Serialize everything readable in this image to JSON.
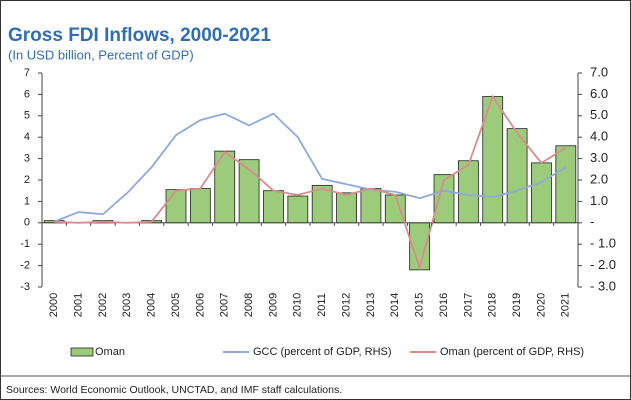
{
  "chart_data": {
    "type": "combo",
    "title": "Gross FDI Inflows, 2000-2021",
    "subtitle": "(In USD billion, Percent of GDP)",
    "source": "Sources: World Economic Outlook, UNCTAD, and IMF staff calculations.",
    "categories": [
      "2000",
      "2001",
      "2002",
      "2003",
      "2004",
      "2005",
      "2006",
      "2007",
      "2008",
      "2009",
      "2010",
      "2011",
      "2012",
      "2013",
      "2014",
      "2015",
      "2016",
      "2017",
      "2018",
      "2019",
      "2020",
      "2021"
    ],
    "series": [
      {
        "name": "Oman",
        "type": "bar",
        "color": "#9ccb7c",
        "values": [
          0.1,
          0.0,
          0.1,
          0.0,
          0.1,
          1.55,
          1.6,
          3.35,
          2.95,
          1.5,
          1.25,
          1.75,
          1.4,
          1.6,
          1.3,
          -2.2,
          2.25,
          2.9,
          5.9,
          4.4,
          2.8,
          3.6
        ]
      },
      {
        "name": "GCC (percent of GDP, RHS)",
        "type": "line",
        "axis": "y2",
        "color": "#8eaadb",
        "values": [
          0.05,
          0.5,
          0.4,
          1.4,
          2.6,
          4.1,
          4.8,
          5.1,
          4.55,
          5.1,
          4.0,
          2.05,
          1.8,
          1.55,
          1.45,
          1.15,
          1.5,
          1.3,
          1.2,
          1.5,
          1.9,
          2.6
        ]
      },
      {
        "name": "Oman (percent of GDP, RHS)",
        "type": "line",
        "axis": "y2",
        "color": "#d98c8c",
        "values": [
          0.05,
          0.0,
          0.05,
          0.0,
          0.05,
          1.5,
          1.6,
          3.3,
          2.5,
          1.5,
          1.3,
          1.6,
          1.3,
          1.6,
          1.3,
          -2.1,
          2.0,
          2.7,
          5.9,
          4.2,
          2.8,
          3.5
        ]
      }
    ],
    "ylim": [
      -3,
      7
    ],
    "yticks": [
      -3,
      -2,
      -1,
      0,
      1,
      2,
      3,
      4,
      5,
      6,
      7
    ],
    "y2lim": [
      -3,
      7
    ],
    "y2ticks": [
      {
        "value": 7,
        "label": "7.0"
      },
      {
        "value": 6,
        "label": "6.0"
      },
      {
        "value": 5,
        "label": "5.0"
      },
      {
        "value": 4,
        "label": "4.0"
      },
      {
        "value": 3,
        "label": "3.0"
      },
      {
        "value": 2,
        "label": "2.0"
      },
      {
        "value": 1,
        "label": "1.0"
      },
      {
        "value": 0,
        "label": "-"
      },
      {
        "value": -1,
        "label": "- 1.0"
      },
      {
        "value": -2,
        "label": "- 2.0"
      },
      {
        "value": -3,
        "label": "- 3.0"
      }
    ],
    "legend": "bottom"
  }
}
